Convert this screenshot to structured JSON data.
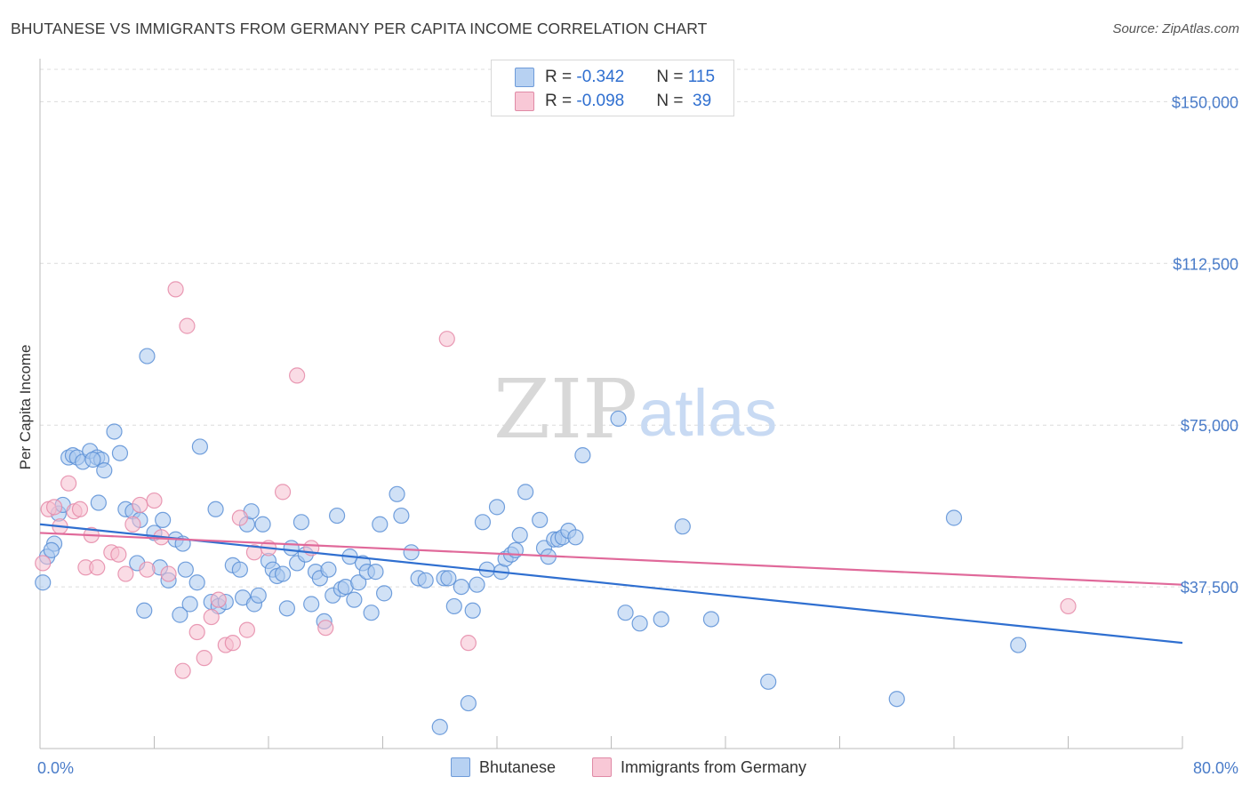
{
  "title": "BHUTANESE VS IMMIGRANTS FROM GERMANY PER CAPITA INCOME CORRELATION CHART",
  "source": "Source: ZipAtlas.com",
  "watermark": {
    "zip": "ZIP",
    "atlas": "atlas"
  },
  "legend": {
    "rows": [
      {
        "r_label": "R = ",
        "r_value": "-0.342",
        "n_label": "N = ",
        "n_value": "115"
      },
      {
        "r_label": "R = ",
        "r_value": "-0.098",
        "n_label": "N = ",
        "n_value": " 39"
      }
    ]
  },
  "bottom_legend": {
    "series1": "Bhutanese",
    "series2": "Immigrants from Germany"
  },
  "chart_data": {
    "type": "scatter",
    "title": "BHUTANESE VS IMMIGRANTS FROM GERMANY PER CAPITA INCOME CORRELATION CHART",
    "xlabel": "",
    "ylabel": "Per Capita Income",
    "xlim": [
      0,
      80
    ],
    "ylim": [
      0,
      157500
    ],
    "x_tick_labels": [
      "0.0%",
      "80.0%"
    ],
    "y_ticks": [
      37500,
      75000,
      112500,
      150000
    ],
    "y_tick_labels": [
      "$37,500",
      "$75,000",
      "$112,500",
      "$150,000"
    ],
    "grid": true,
    "colors": {
      "blue_fill": "#a9c8ef",
      "blue_stroke": "#5a8fd6",
      "blue_line": "#2f6fd0",
      "pink_fill": "#f6bfd0",
      "pink_stroke": "#e58aa8",
      "pink_line": "#e0699a"
    },
    "series": [
      {
        "name": "Bhutanese",
        "trend": {
          "x": [
            0,
            80
          ],
          "y": [
            52000,
            24500
          ]
        },
        "points": [
          [
            0.2,
            38500
          ],
          [
            0.5,
            44500
          ],
          [
            1.0,
            47500
          ],
          [
            1.3,
            54500
          ],
          [
            1.6,
            56500
          ],
          [
            2.0,
            67500
          ],
          [
            2.3,
            68000
          ],
          [
            2.6,
            67500
          ],
          [
            3.0,
            66500
          ],
          [
            3.5,
            69000
          ],
          [
            4.0,
            67500
          ],
          [
            4.1,
            57000
          ],
          [
            4.3,
            67000
          ],
          [
            4.5,
            64500
          ],
          [
            5.2,
            73500
          ],
          [
            5.6,
            68500
          ],
          [
            6.0,
            55500
          ],
          [
            6.5,
            55000
          ],
          [
            6.8,
            43000
          ],
          [
            7.0,
            53000
          ],
          [
            7.3,
            32000
          ],
          [
            7.5,
            91000
          ],
          [
            8.0,
            50000
          ],
          [
            8.4,
            42000
          ],
          [
            8.6,
            53000
          ],
          [
            9.0,
            39000
          ],
          [
            9.5,
            48500
          ],
          [
            9.8,
            31000
          ],
          [
            10.0,
            47500
          ],
          [
            10.2,
            41500
          ],
          [
            10.5,
            33500
          ],
          [
            11.0,
            38500
          ],
          [
            11.2,
            70000
          ],
          [
            12.0,
            34000
          ],
          [
            12.3,
            55500
          ],
          [
            12.5,
            33000
          ],
          [
            13.0,
            34000
          ],
          [
            13.5,
            42500
          ],
          [
            14.0,
            41500
          ],
          [
            14.2,
            35000
          ],
          [
            14.5,
            52000
          ],
          [
            14.8,
            55000
          ],
          [
            15.0,
            33500
          ],
          [
            15.3,
            35500
          ],
          [
            15.6,
            52000
          ],
          [
            16.0,
            43500
          ],
          [
            16.3,
            41500
          ],
          [
            16.6,
            40000
          ],
          [
            17.0,
            40500
          ],
          [
            17.3,
            32500
          ],
          [
            17.6,
            46500
          ],
          [
            18.0,
            43000
          ],
          [
            18.3,
            52500
          ],
          [
            18.6,
            45000
          ],
          [
            19.0,
            33500
          ],
          [
            19.3,
            41000
          ],
          [
            19.6,
            39500
          ],
          [
            19.9,
            29500
          ],
          [
            20.2,
            41500
          ],
          [
            20.5,
            35500
          ],
          [
            20.8,
            54000
          ],
          [
            21.1,
            37000
          ],
          [
            21.4,
            37500
          ],
          [
            21.7,
            44500
          ],
          [
            22.0,
            34500
          ],
          [
            22.3,
            38500
          ],
          [
            22.6,
            43000
          ],
          [
            22.9,
            41000
          ],
          [
            23.2,
            31500
          ],
          [
            23.5,
            41000
          ],
          [
            23.8,
            52000
          ],
          [
            24.1,
            36000
          ],
          [
            25.0,
            59000
          ],
          [
            25.3,
            54000
          ],
          [
            26.0,
            45500
          ],
          [
            26.5,
            39500
          ],
          [
            27.0,
            39000
          ],
          [
            28.0,
            5000
          ],
          [
            28.3,
            39500
          ],
          [
            28.6,
            39500
          ],
          [
            29.0,
            33000
          ],
          [
            29.5,
            37500
          ],
          [
            30.0,
            10500
          ],
          [
            30.3,
            32000
          ],
          [
            30.6,
            38000
          ],
          [
            31.0,
            52500
          ],
          [
            31.3,
            41500
          ],
          [
            32.0,
            56000
          ],
          [
            32.3,
            41000
          ],
          [
            32.6,
            44000
          ],
          [
            33.0,
            45000
          ],
          [
            33.3,
            46000
          ],
          [
            33.6,
            49500
          ],
          [
            34.0,
            59500
          ],
          [
            35.0,
            53000
          ],
          [
            35.3,
            46500
          ],
          [
            35.6,
            44500
          ],
          [
            36.0,
            48500
          ],
          [
            36.3,
            48500
          ],
          [
            36.6,
            49000
          ],
          [
            37.0,
            50500
          ],
          [
            37.5,
            49000
          ],
          [
            38.0,
            68000
          ],
          [
            40.5,
            76500
          ],
          [
            41.0,
            31500
          ],
          [
            42.0,
            29000
          ],
          [
            43.5,
            30000
          ],
          [
            45.0,
            51500
          ],
          [
            47.0,
            30000
          ],
          [
            51.0,
            15500
          ],
          [
            60.0,
            11500
          ],
          [
            64.0,
            53500
          ],
          [
            68.5,
            24000
          ],
          [
            0.8,
            46000
          ],
          [
            3.7,
            67000
          ]
        ]
      },
      {
        "name": "Immigrants from Germany",
        "trend": {
          "x": [
            0,
            80
          ],
          "y": [
            50000,
            38000
          ]
        },
        "points": [
          [
            0.2,
            43000
          ],
          [
            0.6,
            55500
          ],
          [
            1.0,
            56000
          ],
          [
            1.4,
            51500
          ],
          [
            2.0,
            61500
          ],
          [
            2.4,
            55000
          ],
          [
            2.8,
            55500
          ],
          [
            3.2,
            42000
          ],
          [
            3.6,
            49500
          ],
          [
            4.0,
            42000
          ],
          [
            5.0,
            45500
          ],
          [
            5.5,
            45000
          ],
          [
            6.0,
            40500
          ],
          [
            6.5,
            52000
          ],
          [
            7.0,
            56500
          ],
          [
            7.5,
            41500
          ],
          [
            8.0,
            57500
          ],
          [
            8.5,
            49000
          ],
          [
            9.0,
            40500
          ],
          [
            9.5,
            106500
          ],
          [
            10.0,
            18000
          ],
          [
            10.3,
            98000
          ],
          [
            11.0,
            27000
          ],
          [
            11.5,
            21000
          ],
          [
            12.0,
            30500
          ],
          [
            12.5,
            34500
          ],
          [
            13.0,
            24000
          ],
          [
            13.5,
            24500
          ],
          [
            14.0,
            53500
          ],
          [
            14.5,
            27500
          ],
          [
            15.0,
            45500
          ],
          [
            16.0,
            46500
          ],
          [
            17.0,
            59500
          ],
          [
            18.0,
            86500
          ],
          [
            19.0,
            46500
          ],
          [
            20.0,
            28000
          ],
          [
            28.5,
            95000
          ],
          [
            30.0,
            24500
          ],
          [
            72.0,
            33000
          ]
        ]
      }
    ]
  }
}
